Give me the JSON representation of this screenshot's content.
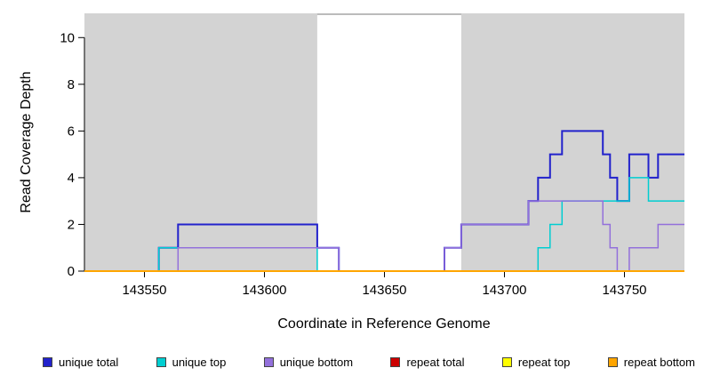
{
  "chart_data": {
    "type": "line",
    "step": true,
    "title": "",
    "xlabel": "Coordinate in Reference Genome",
    "ylabel": "Read Coverage Depth",
    "xlim": [
      143525,
      143775
    ],
    "ylim": [
      0,
      11
    ],
    "x_ticks": [
      143550,
      143600,
      143650,
      143700,
      143750
    ],
    "y_ticks": [
      0,
      2,
      4,
      6,
      8,
      10
    ],
    "grid": false,
    "legend_position": "bottom",
    "shade_color": "#d3d3d3",
    "shaded_regions": [
      {
        "from": 143525,
        "to": 143622
      },
      {
        "from": 143682,
        "to": 143775
      }
    ],
    "series": [
      {
        "name": "unique total",
        "color": "#2222cc",
        "width": 2,
        "points": [
          [
            143525,
            0
          ],
          [
            143556,
            1
          ],
          [
            143564,
            2
          ],
          [
            143622,
            1
          ],
          [
            143631,
            0
          ],
          [
            143675,
            1
          ],
          [
            143682,
            2
          ],
          [
            143710,
            3
          ],
          [
            143714,
            4
          ],
          [
            143719,
            5
          ],
          [
            143724,
            6
          ],
          [
            143741,
            5
          ],
          [
            143744,
            4
          ],
          [
            143747,
            3
          ],
          [
            143752,
            5
          ],
          [
            143760,
            4
          ],
          [
            143764,
            5
          ]
        ]
      },
      {
        "name": "unique top",
        "color": "#00ced1",
        "width": 1.5,
        "points": [
          [
            143525,
            0
          ],
          [
            143556,
            1
          ],
          [
            143622,
            0
          ],
          [
            143714,
            1
          ],
          [
            143719,
            2
          ],
          [
            143724,
            3
          ],
          [
            143752,
            4
          ],
          [
            143760,
            3
          ]
        ]
      },
      {
        "name": "unique bottom",
        "color": "#9370db",
        "width": 1.5,
        "points": [
          [
            143525,
            0
          ],
          [
            143564,
            1
          ],
          [
            143631,
            0
          ],
          [
            143675,
            1
          ],
          [
            143682,
            2
          ],
          [
            143710,
            3
          ],
          [
            143741,
            2
          ],
          [
            143744,
            1
          ],
          [
            143747,
            0
          ],
          [
            143752,
            1
          ],
          [
            143764,
            2
          ]
        ]
      },
      {
        "name": "repeat total",
        "color": "#cc0000",
        "width": 1.5,
        "points": [
          [
            143525,
            0
          ]
        ]
      },
      {
        "name": "repeat top",
        "color": "#ffff00",
        "width": 1.5,
        "points": [
          [
            143525,
            0
          ]
        ]
      },
      {
        "name": "repeat bottom",
        "color": "#ffa500",
        "width": 2,
        "points": [
          [
            143525,
            0
          ]
        ]
      }
    ],
    "legend": [
      {
        "label": "unique total",
        "color": "#2222cc"
      },
      {
        "label": "unique top",
        "color": "#00ced1"
      },
      {
        "label": "unique bottom",
        "color": "#9370db"
      },
      {
        "label": "repeat total",
        "color": "#cc0000"
      },
      {
        "label": "repeat top",
        "color": "#ffff00"
      },
      {
        "label": "repeat bottom",
        "color": "#ffa500"
      }
    ]
  }
}
